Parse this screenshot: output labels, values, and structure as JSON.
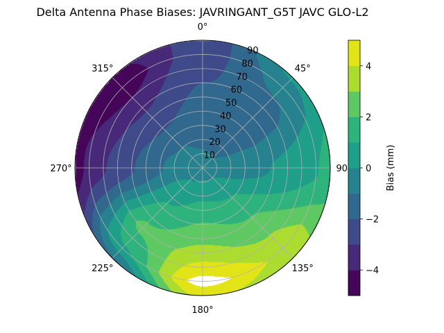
{
  "chart_data": {
    "type": "heatmap",
    "subtype": "polar filled contour",
    "title": "Delta Antenna Phase Biases: JAVRINGANT_G5T  JAVC GLO-L2",
    "theta_direction": "clockwise",
    "theta_zero": "north",
    "theta_tick_labels": [
      "0°",
      "45°",
      "90°",
      "135°",
      "180°",
      "225°",
      "270°",
      "315°"
    ],
    "r_tick_labels": [
      "10",
      "20",
      "30",
      "40",
      "50",
      "60",
      "70",
      "80",
      "90"
    ],
    "rlim": [
      0,
      90
    ],
    "grid": true,
    "colormap": "viridis",
    "levels": [
      -5,
      -4,
      -3,
      -2,
      -1,
      0,
      1,
      2,
      3,
      4,
      5
    ],
    "level_colors": [
      "#450559",
      "#482979",
      "#3e4a89",
      "#31688e",
      "#26828e",
      "#1f9e89",
      "#2eb37c",
      "#5ec962",
      "#addc30",
      "#e3e418"
    ],
    "colorbar": {
      "label": "Bias (mm)",
      "tick_labels": [
        "−4",
        "−2",
        "0",
        "2",
        "4"
      ],
      "ticks": [
        -4,
        -2,
        0,
        2,
        4
      ],
      "range": [
        -5,
        5
      ]
    },
    "grid_azimuths_deg": [
      0,
      45,
      90,
      135,
      180,
      225,
      270,
      315
    ],
    "grid_zeniths_deg": [
      0,
      20,
      40,
      60,
      80,
      90
    ],
    "values_mm": [
      [
        -0.6,
        -1.2,
        -1.6,
        -2.0,
        -2.4,
        -2.6
      ],
      [
        -0.6,
        -1.3,
        -1.7,
        -1.5,
        -0.6,
        0.2
      ],
      [
        -0.6,
        -0.5,
        -0.2,
        0.3,
        0.9,
        1.5
      ],
      [
        -0.6,
        0.6,
        1.6,
        2.6,
        3.8,
        3.3
      ],
      [
        -0.6,
        0.8,
        2.1,
        3.4,
        5.4,
        4.2
      ],
      [
        -0.6,
        0.4,
        1.2,
        2.3,
        0.8,
        -1.2
      ],
      [
        -0.6,
        -0.6,
        -1.6,
        -2.6,
        -3.6,
        -4.6
      ],
      [
        -0.6,
        -1.0,
        -2.1,
        -3.2,
        -4.7,
        -4.2
      ]
    ]
  }
}
